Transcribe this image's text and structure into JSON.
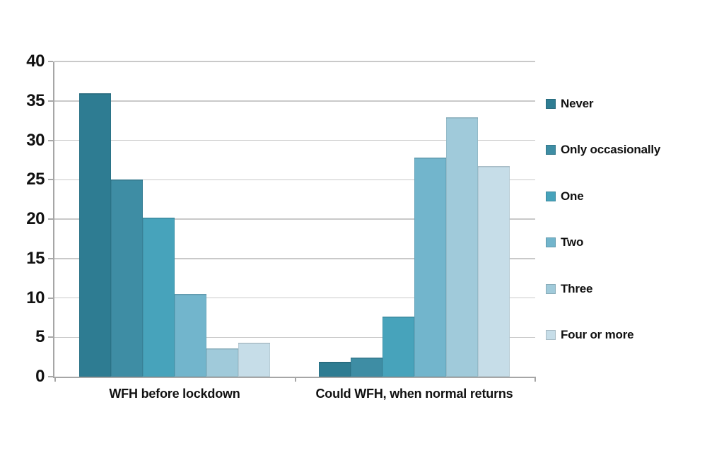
{
  "chart_data": {
    "type": "bar",
    "categories": [
      "WFH before lockdown",
      "Could WFH, when normal returns"
    ],
    "series": [
      {
        "name": "Never",
        "color": "#2E7C92",
        "values": [
          36,
          1.9
        ]
      },
      {
        "name": "Only occasionally",
        "color": "#3E8DA4",
        "values": [
          25,
          2.4
        ]
      },
      {
        "name": "One",
        "color": "#47A3BB",
        "values": [
          20.2,
          7.6
        ]
      },
      {
        "name": "Two",
        "color": "#72B5CC",
        "values": [
          10.5,
          27.8
        ]
      },
      {
        "name": "Three",
        "color": "#A0CADA",
        "values": [
          3.6,
          32.9
        ]
      },
      {
        "name": "Four or more",
        "color": "#C6DDE8",
        "values": [
          4.3,
          26.7
        ]
      }
    ],
    "ylim": [
      0,
      40
    ],
    "y_ticks": [
      0,
      5,
      10,
      15,
      20,
      25,
      30,
      35,
      40
    ],
    "grid": true,
    "legend_position": "right",
    "title": "",
    "xlabel": "",
    "ylabel": ""
  },
  "style": {
    "background": "#FFFFFF",
    "gridline_color": "#C9C9C9",
    "axis_color": "#A6A6A6",
    "text_color": "#111111"
  }
}
